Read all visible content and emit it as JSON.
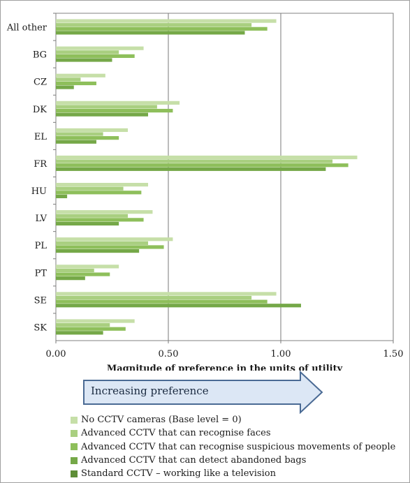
{
  "chart_data": {
    "type": "bar",
    "orientation": "horizontal",
    "xlabel": "Magnitude of preference in the units of utility",
    "xlim": [
      0,
      1.5
    ],
    "xticks": [
      "0.00",
      "0.50",
      "1.00",
      "1.50"
    ],
    "grid": true,
    "legend_position": "bottom",
    "categories": [
      "All other",
      "BG",
      "CZ",
      "DK",
      "EL",
      "FR",
      "HU",
      "LV",
      "PL",
      "PT",
      "SE",
      "SK"
    ],
    "series": [
      {
        "name": "No CCTV cameras (Base level = 0)",
        "color": "#c6dfa8",
        "values": [
          0.98,
          0.39,
          0.22,
          0.55,
          0.32,
          1.34,
          0.41,
          0.43,
          0.52,
          0.28,
          0.98,
          0.35
        ]
      },
      {
        "name": "Advanced CCTV that can recognise faces",
        "color": "#a9cf80",
        "values": [
          0.87,
          0.28,
          0.11,
          0.45,
          0.21,
          1.23,
          0.3,
          0.32,
          0.41,
          0.17,
          0.87,
          0.24
        ]
      },
      {
        "name": "Advanced CCTV that can recognise suspicious movements of people",
        "color": "#8ebf5b",
        "values": [
          0.94,
          0.35,
          0.18,
          0.52,
          0.28,
          1.3,
          0.38,
          0.39,
          0.48,
          0.24,
          0.94,
          0.31
        ]
      },
      {
        "name": "Advanced CCTV that can detect abandoned bags",
        "color": "#75a848",
        "values": [
          0.84,
          0.25,
          0.08,
          0.41,
          0.18,
          1.2,
          0.05,
          0.28,
          0.37,
          0.13,
          1.09,
          0.21
        ]
      },
      {
        "name": "Standard CCTV – working like a television",
        "color": "#5e8e37",
        "values": [
          0,
          0,
          0,
          0,
          0,
          0,
          0,
          0,
          0,
          0,
          0,
          0
        ]
      }
    ]
  },
  "annotation": {
    "text": "Increasing preference",
    "fill": "#dce7f5",
    "stroke": "#4a6a94"
  }
}
